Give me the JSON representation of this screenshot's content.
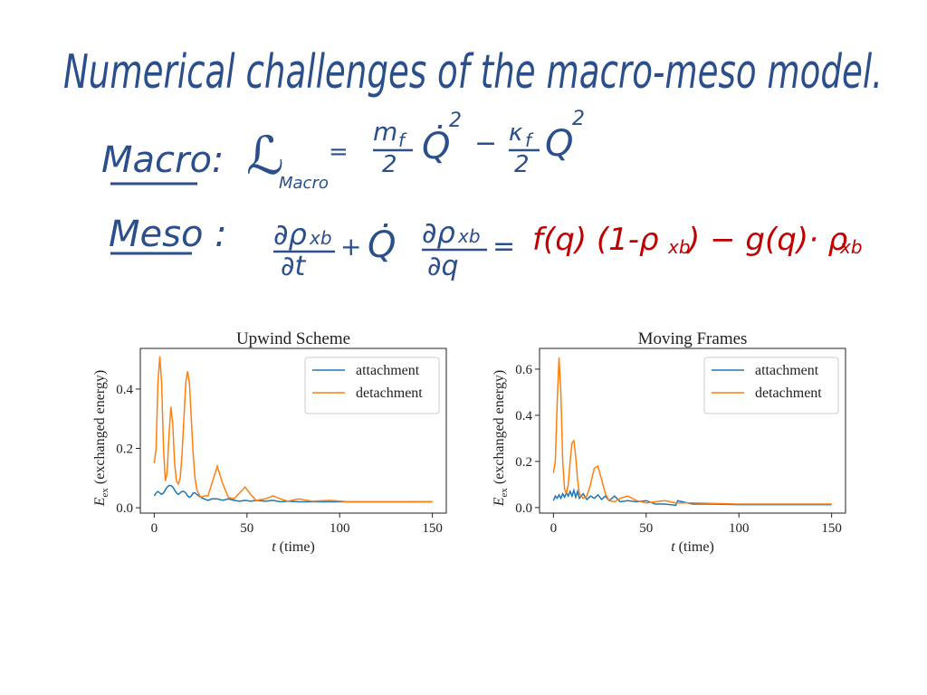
{
  "title": "Numerical challenges of the macro-meso model.",
  "macro": {
    "label": "Macro:",
    "lhs": "ℒ",
    "lhs_sub": "Macro",
    "equals": "=",
    "coef1": "m",
    "coef1_sub": "f",
    "den1": "2",
    "var1": "Q̇",
    "pow1": "2",
    "minus": "−",
    "coef2": "κ",
    "coef2_sub": "f",
    "den2": "2",
    "var2": "Q",
    "pow2": "2"
  },
  "meso": {
    "label": "Meso :",
    "num1": "∂ρ",
    "num1_sub": "xb",
    "den1": "∂t",
    "plus": "+",
    "qdot": "Q̇",
    "num2": "∂ρ",
    "num2_sub": "xb",
    "den2": "∂q",
    "equals": "=",
    "rhs1": "f(q) (1-ρ",
    "rhs1_sub": "xb",
    "rhs2": ") − g(q)· ρ",
    "rhs2_sub": "xb"
  },
  "chart_data": [
    {
      "type": "line",
      "title": "Upwind Scheme",
      "xlabel_symbol": "t",
      "xlabel_text": "(time)",
      "ylabel_symbol": "E",
      "ylabel_sub": "ex",
      "ylabel_text": "(exchanged energy)",
      "x": [
        0,
        1,
        2,
        3,
        4,
        5,
        6,
        7,
        8,
        9,
        10,
        11,
        12,
        13,
        14,
        15,
        16,
        17,
        18,
        19,
        20,
        21,
        22,
        23,
        25,
        27,
        29,
        31,
        34,
        37,
        40,
        43,
        46,
        49,
        52,
        55,
        60,
        64,
        68,
        72,
        78,
        85,
        95,
        105,
        120,
        135,
        150
      ],
      "series": [
        {
          "name": "attachment",
          "color": "#1f77b4",
          "values": [
            0.04,
            0.05,
            0.055,
            0.05,
            0.045,
            0.05,
            0.06,
            0.07,
            0.075,
            0.075,
            0.07,
            0.06,
            0.05,
            0.045,
            0.05,
            0.055,
            0.055,
            0.05,
            0.04,
            0.035,
            0.04,
            0.05,
            0.05,
            0.045,
            0.035,
            0.03,
            0.025,
            0.03,
            0.03,
            0.025,
            0.03,
            0.025,
            0.022,
            0.025,
            0.022,
            0.025,
            0.022,
            0.025,
            0.02,
            0.022,
            0.02,
            0.02,
            0.02,
            0.02,
            0.02,
            0.02,
            0.02
          ]
        },
        {
          "name": "detachment",
          "color": "#ff7f0e",
          "values": [
            0.15,
            0.2,
            0.42,
            0.51,
            0.42,
            0.2,
            0.09,
            0.12,
            0.25,
            0.34,
            0.28,
            0.15,
            0.09,
            0.08,
            0.1,
            0.18,
            0.3,
            0.42,
            0.46,
            0.42,
            0.3,
            0.18,
            0.1,
            0.06,
            0.035,
            0.04,
            0.04,
            0.08,
            0.14,
            0.08,
            0.035,
            0.03,
            0.05,
            0.07,
            0.045,
            0.025,
            0.03,
            0.04,
            0.03,
            0.022,
            0.03,
            0.022,
            0.025,
            0.02,
            0.02,
            0.02,
            0.02
          ]
        }
      ],
      "xlim": [
        -7.5,
        157.5
      ],
      "xticks": [
        0,
        50,
        100,
        150
      ],
      "ylim": [
        -0.018,
        0.537
      ],
      "yticks": [
        {
          "value": 0,
          "label": "0.0"
        },
        0.2,
        0.4
      ],
      "legend": "upper right",
      "grid": false
    },
    {
      "type": "line",
      "title": "Moving Frames",
      "xlabel_symbol": "t",
      "xlabel_text": "(time)",
      "ylabel_symbol": "E",
      "ylabel_sub": "ex",
      "ylabel_text": "(exchanged energy)",
      "x": [
        0,
        1,
        2,
        3,
        4,
        5,
        6,
        7,
        8,
        9,
        10,
        11,
        12,
        13,
        14,
        16,
        18,
        20,
        22,
        24,
        26,
        28,
        30,
        33,
        36,
        40,
        45,
        50,
        55,
        60,
        66,
        67,
        75,
        85,
        100,
        120,
        150
      ],
      "series": [
        {
          "name": "attachment",
          "color": "#1f77b4",
          "values": [
            0.03,
            0.05,
            0.04,
            0.055,
            0.04,
            0.06,
            0.045,
            0.065,
            0.05,
            0.07,
            0.05,
            0.075,
            0.045,
            0.07,
            0.04,
            0.06,
            0.035,
            0.05,
            0.04,
            0.055,
            0.035,
            0.05,
            0.03,
            0.05,
            0.025,
            0.03,
            0.025,
            0.03,
            0.015,
            0.015,
            0.01,
            0.03,
            0.015,
            0.015,
            0.013,
            0.013,
            0.013
          ]
        },
        {
          "name": "detachment",
          "color": "#ff7f0e",
          "values": [
            0.15,
            0.2,
            0.45,
            0.65,
            0.5,
            0.2,
            0.08,
            0.06,
            0.1,
            0.2,
            0.28,
            0.29,
            0.22,
            0.12,
            0.06,
            0.04,
            0.05,
            0.1,
            0.17,
            0.18,
            0.12,
            0.06,
            0.03,
            0.025,
            0.04,
            0.05,
            0.03,
            0.02,
            0.025,
            0.03,
            0.02,
            0.02,
            0.02,
            0.018,
            0.015,
            0.015,
            0.015
          ]
        }
      ],
      "xlim": [
        -7.5,
        157.5
      ],
      "xticks": [
        0,
        50,
        100,
        150
      ],
      "ylim": [
        -0.024,
        0.69
      ],
      "yticks": [
        {
          "value": 0,
          "label": "0.0"
        },
        0.2,
        0.4,
        0.6
      ],
      "legend": "upper right",
      "grid": false
    }
  ]
}
